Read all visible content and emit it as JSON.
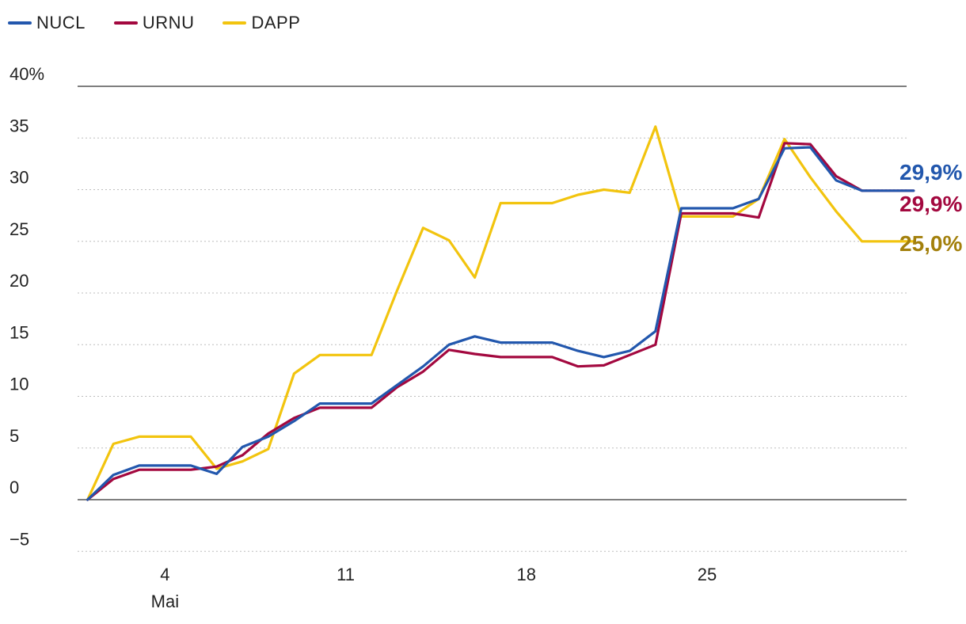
{
  "legend": [
    {
      "label": "NUCL",
      "color": "#2257ad"
    },
    {
      "label": "URNU",
      "color": "#a3083f"
    },
    {
      "label": "DAPP",
      "color": "#f2c40e"
    }
  ],
  "chart_data": {
    "type": "line",
    "title": "",
    "xlabel": "",
    "ylabel": "",
    "ylim": [
      -5,
      40
    ],
    "y_ticks": [
      -5,
      0,
      5,
      10,
      15,
      20,
      25,
      30,
      35,
      40
    ],
    "y_tick_labels": [
      "−5",
      "0",
      "5",
      "10",
      "15",
      "20",
      "25",
      "30",
      "35",
      "40%"
    ],
    "x_ticks": [
      {
        "day": 4,
        "label": "4",
        "sublabel": "Mai"
      },
      {
        "day": 11,
        "label": "11",
        "sublabel": ""
      },
      {
        "day": 18,
        "label": "18",
        "sublabel": ""
      },
      {
        "day": 25,
        "label": "25",
        "sublabel": ""
      }
    ],
    "x_range": [
      0.7,
      33.3
    ],
    "grid": true,
    "legend_position": "top-left",
    "series": [
      {
        "name": "NUCL",
        "color": "#2257ad",
        "end_label": "29,9%",
        "end_label_color": "#2257ad",
        "points": [
          [
            1,
            0
          ],
          [
            2,
            2.4
          ],
          [
            3,
            3.3
          ],
          [
            4,
            3.3
          ],
          [
            5,
            3.3
          ],
          [
            6,
            2.5
          ],
          [
            7,
            5.1
          ],
          [
            8,
            6.1
          ],
          [
            9,
            7.6
          ],
          [
            10,
            9.3
          ],
          [
            11,
            9.3
          ],
          [
            12,
            9.3
          ],
          [
            13,
            11.1
          ],
          [
            14,
            12.9
          ],
          [
            15,
            15.0
          ],
          [
            16,
            15.8
          ],
          [
            17,
            15.2
          ],
          [
            18,
            15.2
          ],
          [
            19,
            15.2
          ],
          [
            20,
            14.4
          ],
          [
            21,
            13.8
          ],
          [
            22,
            14.4
          ],
          [
            23,
            16.3
          ],
          [
            24,
            28.2
          ],
          [
            25,
            28.2
          ],
          [
            26,
            28.2
          ],
          [
            27,
            29.1
          ],
          [
            28,
            34.0
          ],
          [
            29,
            34.1
          ],
          [
            30,
            30.9
          ],
          [
            31,
            29.9
          ],
          [
            32,
            29.9
          ],
          [
            33,
            29.9
          ]
        ]
      },
      {
        "name": "URNU",
        "color": "#a3083f",
        "end_label": "29,9%",
        "end_label_color": "#a3083f",
        "points": [
          [
            1,
            0
          ],
          [
            2,
            2.0
          ],
          [
            3,
            2.9
          ],
          [
            4,
            2.9
          ],
          [
            5,
            2.9
          ],
          [
            6,
            3.2
          ],
          [
            7,
            4.3
          ],
          [
            8,
            6.4
          ],
          [
            9,
            7.9
          ],
          [
            10,
            8.9
          ],
          [
            11,
            8.9
          ],
          [
            12,
            8.9
          ],
          [
            13,
            10.9
          ],
          [
            14,
            12.4
          ],
          [
            15,
            14.5
          ],
          [
            16,
            14.1
          ],
          [
            17,
            13.8
          ],
          [
            18,
            13.8
          ],
          [
            19,
            13.8
          ],
          [
            20,
            12.9
          ],
          [
            21,
            13.0
          ],
          [
            22,
            14.0
          ],
          [
            23,
            15.0
          ],
          [
            24,
            27.7
          ],
          [
            25,
            27.7
          ],
          [
            26,
            27.7
          ],
          [
            27,
            27.3
          ],
          [
            28,
            34.5
          ],
          [
            29,
            34.4
          ],
          [
            30,
            31.3
          ],
          [
            31,
            29.9
          ],
          [
            32,
            29.9
          ],
          [
            33,
            29.9
          ]
        ]
      },
      {
        "name": "DAPP",
        "color": "#f2c40e",
        "end_label": "25,0%",
        "end_label_color": "#a3800c",
        "points": [
          [
            1,
            0
          ],
          [
            2,
            5.4
          ],
          [
            3,
            6.1
          ],
          [
            4,
            6.1
          ],
          [
            5,
            6.1
          ],
          [
            6,
            3.0
          ],
          [
            7,
            3.7
          ],
          [
            8,
            4.9
          ],
          [
            9,
            12.2
          ],
          [
            10,
            14.0
          ],
          [
            11,
            14.0
          ],
          [
            12,
            14.0
          ],
          [
            13,
            20.3
          ],
          [
            14,
            26.3
          ],
          [
            15,
            25.1
          ],
          [
            16,
            21.5
          ],
          [
            17,
            28.7
          ],
          [
            18,
            28.7
          ],
          [
            19,
            28.7
          ],
          [
            20,
            29.5
          ],
          [
            21,
            30.0
          ],
          [
            22,
            29.7
          ],
          [
            23,
            36.1
          ],
          [
            24,
            27.4
          ],
          [
            25,
            27.4
          ],
          [
            26,
            27.4
          ],
          [
            27,
            29.1
          ],
          [
            28,
            34.9
          ],
          [
            29,
            31.2
          ],
          [
            30,
            27.9
          ],
          [
            31,
            25.0
          ],
          [
            32,
            25.0
          ],
          [
            33,
            25.0
          ]
        ]
      }
    ]
  }
}
